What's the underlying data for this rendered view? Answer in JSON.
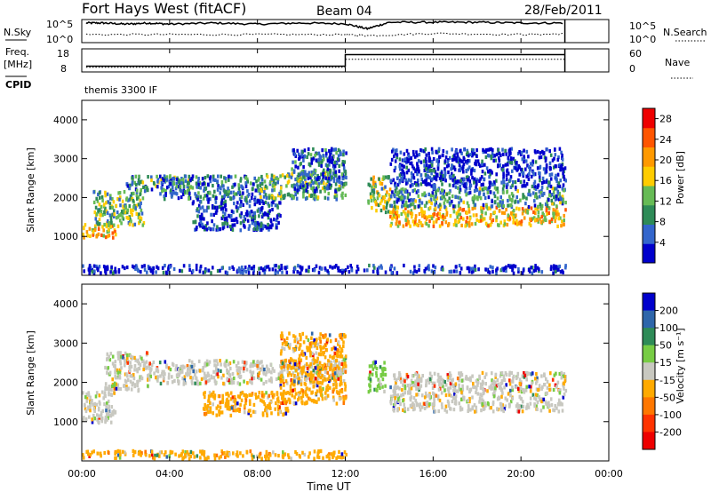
{
  "header": {
    "station": "Fort Hays West (fitACF)",
    "beam": "Beam 04",
    "date": "28/Feb/2011",
    "cpid_text": "themis 3300 IF"
  },
  "labels": {
    "nsky": "N.Sky",
    "nsearch": "N.Search",
    "freq": "Freq.",
    "freq_unit": "[MHz]",
    "nave": "Nave",
    "cpid": "CPID",
    "xlabel": "Time UT",
    "ylabel": "Slant Range [km]",
    "power_label": "Power [dB]",
    "velocity_label": "Velocity [m s⁻¹]"
  },
  "chart_data": [
    {
      "type": "line",
      "panel": "noise",
      "left_ticks": [
        "10^5",
        "10^0"
      ],
      "right_ticks": [
        "10^5",
        "10^0"
      ],
      "series": [
        {
          "name": "N.Sky",
          "style": "solid",
          "x": [
            0.2,
            1,
            2,
            3,
            4,
            6,
            8,
            10,
            12,
            13,
            14,
            16,
            18,
            20,
            22
          ],
          "level": [
            0.85,
            0.85,
            0.8,
            0.85,
            0.8,
            0.85,
            0.8,
            0.85,
            0.82,
            0.6,
            0.88,
            0.88,
            0.88,
            0.85,
            0.85
          ]
        },
        {
          "name": "N.Search",
          "style": "dotted",
          "x": [
            0.2,
            4,
            8,
            12,
            13,
            16,
            20,
            22
          ],
          "level": [
            0.35,
            0.35,
            0.35,
            0.35,
            0.3,
            0.4,
            0.35,
            0.38
          ]
        }
      ],
      "xlim": [
        0,
        24
      ]
    },
    {
      "type": "line",
      "panel": "frequency",
      "left_ticks": [
        "18",
        "8"
      ],
      "right_ticks": [
        "60",
        "0"
      ],
      "series": [
        {
          "name": "Freq.",
          "style": "solid",
          "x": [
            0.2,
            12.0,
            12.0,
            22.0
          ],
          "y": [
            10.5,
            10.5,
            15.5,
            15.5
          ]
        },
        {
          "name": "Nave",
          "style": "dotted",
          "x": [
            0.2,
            12.0,
            12.0,
            22.0
          ],
          "y": [
            10.0,
            10.0,
            13.5,
            13.5
          ]
        }
      ],
      "ylim": [
        8,
        18
      ],
      "xlim": [
        0,
        24
      ]
    },
    {
      "type": "heatmap",
      "panel": "power",
      "xlim": [
        0,
        24
      ],
      "ylim": [
        0,
        4500
      ],
      "yticks": [
        1000,
        2000,
        3000,
        4000
      ],
      "colorbar_ticks": [
        4,
        8,
        12,
        16,
        20,
        24,
        28
      ],
      "colorbar_range": [
        0,
        30
      ],
      "colors": [
        "#0000cc",
        "#3366cc",
        "#2e8b57",
        "#66bb55",
        "#ffcc00",
        "#ff9900",
        "#ff5500",
        "#ee0000"
      ],
      "regions": [
        {
          "t0": 0.0,
          "t1": 1.5,
          "r0": 1000,
          "r1": 1400,
          "level": 0.65
        },
        {
          "t0": 0.5,
          "t1": 2.8,
          "r0": 1300,
          "r1": 2200,
          "level": 0.4
        },
        {
          "t0": 2.0,
          "t1": 5.0,
          "r0": 2200,
          "r1": 2600,
          "level": 0.3
        },
        {
          "t0": 3.5,
          "t1": 8.0,
          "r0": 2000,
          "r1": 2600,
          "level": 0.25
        },
        {
          "t0": 5.0,
          "t1": 9.0,
          "r0": 1200,
          "r1": 2000,
          "level": 0.12
        },
        {
          "t0": 8.0,
          "t1": 12.0,
          "r0": 2000,
          "r1": 2700,
          "level": 0.35
        },
        {
          "t0": 9.5,
          "t1": 12.0,
          "r0": 2200,
          "r1": 3300,
          "level": 0.2
        },
        {
          "t0": 13.0,
          "t1": 14.0,
          "r0": 1600,
          "r1": 2600,
          "level": 0.45
        },
        {
          "t0": 14.0,
          "t1": 22.0,
          "r0": 1300,
          "r1": 1800,
          "level": 0.6
        },
        {
          "t0": 14.0,
          "t1": 22.0,
          "r0": 1800,
          "r1": 2300,
          "level": 0.3
        },
        {
          "t0": 14.0,
          "t1": 22.0,
          "r0": 2300,
          "r1": 3300,
          "level": 0.08
        },
        {
          "t0": 0.0,
          "t1": 22.0,
          "r0": 100,
          "r1": 300,
          "level": 0.05
        }
      ]
    },
    {
      "type": "heatmap",
      "panel": "velocity",
      "xlim": [
        0,
        24
      ],
      "ylim": [
        0,
        4500
      ],
      "yticks": [
        1000,
        2000,
        3000,
        4000
      ],
      "colorbar_ticks": [
        200,
        100,
        50,
        15,
        -15,
        -50,
        -100,
        -200
      ],
      "colors": [
        "#0000cc",
        "#2e66aa",
        "#2e8b57",
        "#77cc44",
        "#c8c8c0",
        "#ffaa00",
        "#ff7700",
        "#ff3300",
        "#ee0000"
      ],
      "regions": [
        {
          "t0": 0.0,
          "t1": 1.5,
          "r0": 1000,
          "r1": 1800,
          "class": 4
        },
        {
          "t0": 1.0,
          "t1": 3.0,
          "r0": 1800,
          "r1": 2800,
          "class": 4
        },
        {
          "t0": 3.0,
          "t1": 12.0,
          "r0": 2000,
          "r1": 2600,
          "class": 4
        },
        {
          "t0": 5.5,
          "t1": 9.5,
          "r0": 1200,
          "r1": 1800,
          "class": 5
        },
        {
          "t0": 9.0,
          "t1": 12.0,
          "r0": 1500,
          "r1": 3300,
          "class": 5
        },
        {
          "t0": 13.0,
          "t1": 13.8,
          "r0": 1800,
          "r1": 2600,
          "class": 3
        },
        {
          "t0": 14.0,
          "t1": 22.0,
          "r0": 1300,
          "r1": 2300,
          "class": 4
        },
        {
          "t0": 0.0,
          "t1": 12.0,
          "r0": 100,
          "r1": 300,
          "class": 5
        }
      ]
    }
  ],
  "xaxis": {
    "ticks": [
      "00:00",
      "04:00",
      "08:00",
      "12:00",
      "16:00",
      "20:00",
      "00:00"
    ],
    "xlim": [
      0,
      24
    ]
  }
}
